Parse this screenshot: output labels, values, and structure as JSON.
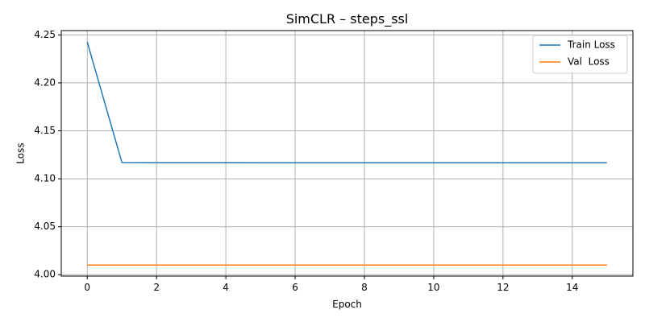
{
  "chart_data": {
    "type": "line",
    "title": "SimCLR – steps_ssl",
    "xlabel": "Epoch",
    "ylabel": "Loss",
    "xlim": [
      -0.75,
      15.75
    ],
    "ylim": [
      3.9985,
      4.2545
    ],
    "xticks": [
      0,
      2,
      4,
      6,
      8,
      10,
      12,
      14
    ],
    "xtick_labels": [
      "0",
      "2",
      "4",
      "6",
      "8",
      "10",
      "12",
      "14"
    ],
    "yticks": [
      4.0,
      4.05,
      4.1,
      4.15,
      4.2,
      4.25
    ],
    "ytick_labels": [
      "4.00",
      "4.05",
      "4.10",
      "4.15",
      "4.20",
      "4.25"
    ],
    "grid": true,
    "legend_position": "top-right",
    "x": [
      0,
      1,
      2,
      3,
      4,
      5,
      6,
      7,
      8,
      9,
      10,
      11,
      12,
      13,
      14,
      15
    ],
    "series": [
      {
        "name": "Train Loss",
        "color": "#1f77b4",
        "values": [
          4.2425,
          4.117,
          4.1169,
          4.1168,
          4.1168,
          4.1167,
          4.1167,
          4.1167,
          4.1167,
          4.1167,
          4.1167,
          4.1167,
          4.1167,
          4.1167,
          4.1167,
          4.1167
        ]
      },
      {
        "name": "Val  Loss",
        "color": "#ff7f0e",
        "values": [
          4.01,
          4.01,
          4.01,
          4.01,
          4.01,
          4.01,
          4.01,
          4.01,
          4.01,
          4.01,
          4.01,
          4.01,
          4.01,
          4.01,
          4.01,
          4.01
        ]
      }
    ]
  }
}
